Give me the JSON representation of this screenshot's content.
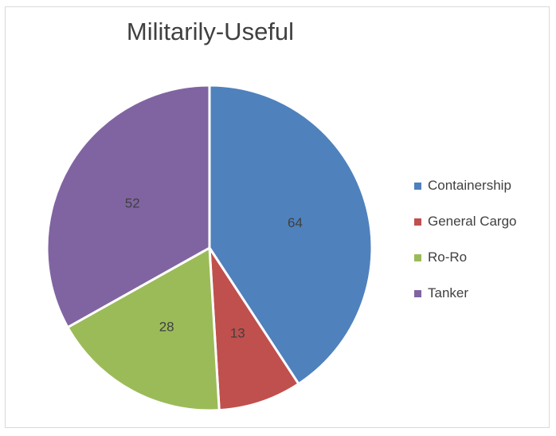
{
  "chart_data": {
    "type": "pie",
    "title": "Militarily-Useful",
    "categories": [
      "Containership",
      "General Cargo",
      "Ro-Ro",
      "Tanker"
    ],
    "values": [
      64,
      13,
      28,
      52
    ],
    "colors": [
      "#4f81bd",
      "#c0504d",
      "#9bbb59",
      "#8064a2"
    ],
    "legend": "right",
    "data_labels": true
  }
}
